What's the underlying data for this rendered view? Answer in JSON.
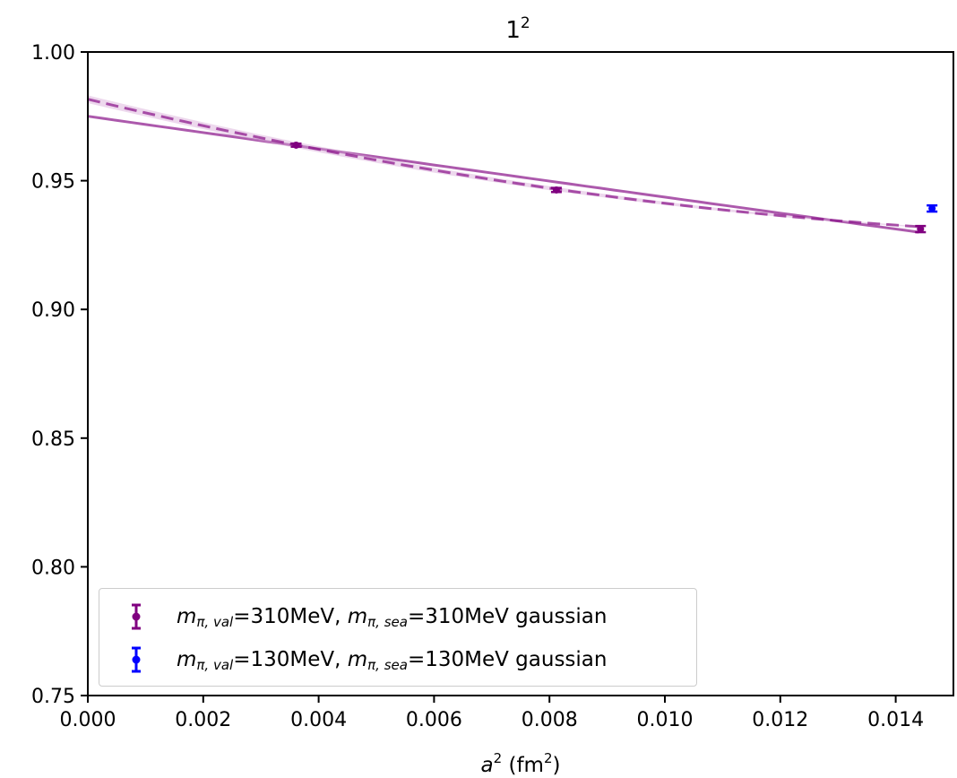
{
  "colors": {
    "purple": "#800080",
    "blue": "#0000ff",
    "band": "#d8a8d8"
  },
  "legend": {
    "entries": [
      {
        "m": "m",
        "sub_val": "π, val",
        "val_text": "=310MeV, ",
        "sub_sea": "π, sea",
        "sea_text": "=310MeV gaussian",
        "color": "#800080"
      },
      {
        "m": "m",
        "sub_val": "π, val",
        "val_text": "=130MeV, ",
        "sub_sea": "π, sea",
        "sea_text": "=130MeV gaussian",
        "color": "#0000ff"
      }
    ]
  },
  "chart_data": {
    "type": "scatter",
    "title": "1",
    "title_sup": "2",
    "xlabel": "a",
    "xlabel_sup": "2",
    "xlabel_unit": " (fm",
    "xlabel_unit_sup": "2",
    "xlabel_close": ")",
    "xlim": [
      0.0,
      0.015
    ],
    "ylim": [
      0.75,
      1.0
    ],
    "xticks": [
      "0.000",
      "0.002",
      "0.004",
      "0.006",
      "0.008",
      "0.010",
      "0.012",
      "0.014"
    ],
    "xtick_values": [
      0.0,
      0.002,
      0.004,
      0.006,
      0.008,
      0.01,
      0.012,
      0.014
    ],
    "yticks": [
      "0.75",
      "0.80",
      "0.85",
      "0.90",
      "0.95",
      "1.00"
    ],
    "ytick_values": [
      0.75,
      0.8,
      0.85,
      0.9,
      0.95,
      1.0
    ],
    "grid": false,
    "legend_position": "lower-left",
    "series": [
      {
        "name": "mπ,val=310MeV, mπ,sea=310MeV gaussian",
        "color": "#800080",
        "x": [
          0.00361,
          0.00812,
          0.01443
        ],
        "y": [
          0.9638,
          0.9464,
          0.9312
        ],
        "yerr": [
          0.0006,
          0.0008,
          0.0012
        ]
      },
      {
        "name": "mπ,val=130MeV, mπ,sea=130MeV gaussian",
        "color": "#0000ff",
        "x": [
          0.01463
        ],
        "y": [
          0.9392
        ],
        "yerr": [
          0.0012
        ]
      }
    ],
    "fits": [
      {
        "style": "solid",
        "color": "#800080",
        "x": [
          0.0,
          0.0036,
          0.0081,
          0.0144
        ],
        "y": [
          0.975,
          0.9637,
          0.9495,
          0.93
        ]
      },
      {
        "style": "dashed",
        "color": "#800080",
        "x": [
          0.0,
          0.0036,
          0.0081,
          0.0144
        ],
        "y": [
          0.9815,
          0.9643,
          0.9465,
          0.9322
        ],
        "band": 0.0015
      }
    ]
  }
}
